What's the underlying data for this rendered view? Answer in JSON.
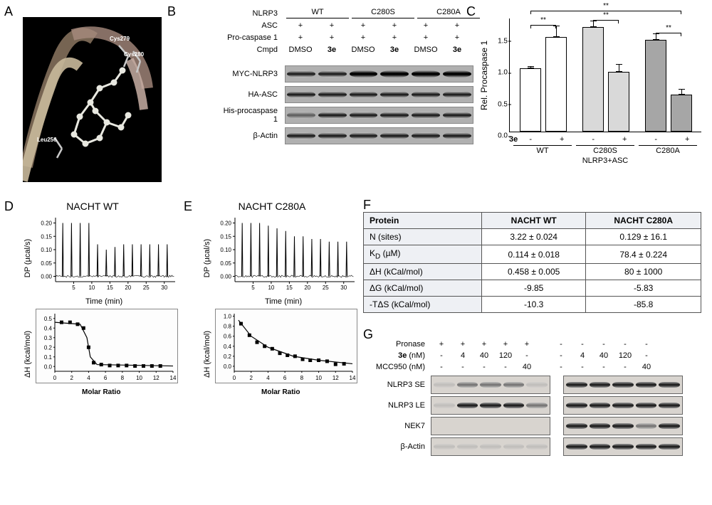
{
  "panels": {
    "A": {
      "label": "A",
      "residues": [
        "Cys279",
        "Cys280",
        "Leu256"
      ]
    },
    "B": {
      "label": "B",
      "variants": [
        "WT",
        "C280S",
        "C280A"
      ],
      "header_rows": [
        "NLRP3",
        "ASC",
        "Pro-caspase 1",
        "Cmpd"
      ],
      "treatments": [
        "DMSO",
        "3e",
        "DMSO",
        "3e",
        "DMSO",
        "3e"
      ],
      "plus": "+",
      "blots": [
        "MYC-NLRP3",
        "HA-ASC",
        "His-procaspase 1",
        "β-Actin"
      ]
    },
    "C": {
      "label": "C",
      "ylabel": "Rel. Procaspase 1",
      "ylim": [
        0,
        1.8
      ],
      "yticks": [
        0,
        0.5,
        1.0,
        1.5
      ],
      "groups": [
        "WT",
        "C280S",
        "C280A"
      ],
      "bottom_label": "NLRP3+ASC",
      "treatment_label": "3e",
      "pm": [
        "-",
        "+",
        "-",
        "+",
        "-",
        "+"
      ],
      "bars": [
        {
          "y": 1.0,
          "err": 0.03,
          "fill": "#ffffff"
        },
        {
          "y": 1.5,
          "err": 0.18,
          "fill": "#ffffff"
        },
        {
          "y": 1.65,
          "err": 0.1,
          "fill": "#d9d9d9"
        },
        {
          "y": 0.95,
          "err": 0.12,
          "fill": "#d9d9d9"
        },
        {
          "y": 1.45,
          "err": 0.1,
          "fill": "#a6a6a6"
        },
        {
          "y": 0.58,
          "err": 0.09,
          "fill": "#a6a6a6"
        }
      ],
      "sig_marker": "**",
      "sig_pairs": [
        {
          "i": 0,
          "j": 1,
          "y": 1.7
        },
        {
          "i": 2,
          "j": 3,
          "y": 1.78
        },
        {
          "i": 4,
          "j": 5,
          "y": 1.58
        },
        {
          "i": 0,
          "j": 5,
          "y": 1.92
        }
      ],
      "bar_width": 0.32,
      "group_gap": 0.25
    },
    "D": {
      "label": "D",
      "title": "NACHT WT",
      "top": {
        "ylabel": "DP (µcal/s)",
        "xlabel": "Time (min)",
        "ylim": [
          -0.02,
          0.22
        ],
        "yticks": [
          0.0,
          0.05,
          0.1,
          0.15,
          0.2
        ],
        "xlim": [
          0,
          33
        ],
        "xticks": [
          5,
          10,
          15,
          20,
          25,
          30
        ],
        "peaks_x": [
          2,
          4.4,
          6.8,
          9.2,
          11.6,
          14,
          16.4,
          18.8,
          21.2,
          23.6,
          26,
          28.4,
          30.8
        ],
        "peaks_y": [
          0.2,
          0.2,
          0.2,
          0.2,
          0.12,
          0.1,
          0.11,
          0.12,
          0.12,
          0.12,
          0.12,
          0.12,
          0.12
        ]
      },
      "bottom": {
        "ylabel": "ΔH (kcal/mol)",
        "xlabel": "Molar Ratio",
        "ylim": [
          -0.05,
          0.55
        ],
        "yticks": [
          0.0,
          0.1,
          0.2,
          0.3,
          0.4,
          0.5
        ],
        "xlim": [
          0,
          14
        ],
        "xticks": [
          0,
          2,
          4,
          6,
          8,
          10,
          12,
          14
        ],
        "points": [
          {
            "x": 0.8,
            "y": 0.46
          },
          {
            "x": 1.8,
            "y": 0.46
          },
          {
            "x": 2.7,
            "y": 0.44
          },
          {
            "x": 3.4,
            "y": 0.4
          },
          {
            "x": 4.0,
            "y": 0.2
          },
          {
            "x": 4.6,
            "y": 0.04
          },
          {
            "x": 5.5,
            "y": 0.02
          },
          {
            "x": 6.5,
            "y": 0.01
          },
          {
            "x": 7.5,
            "y": 0.01
          },
          {
            "x": 8.5,
            "y": 0.01
          },
          {
            "x": 9.5,
            "y": 0.005
          },
          {
            "x": 10.5,
            "y": 0.005
          },
          {
            "x": 11.5,
            "y": 0.005
          },
          {
            "x": 12.5,
            "y": 0.005
          }
        ],
        "curve": [
          {
            "x": 0,
            "y": 0.46
          },
          {
            "x": 3,
            "y": 0.44
          },
          {
            "x": 3.8,
            "y": 0.3
          },
          {
            "x": 4.2,
            "y": 0.1
          },
          {
            "x": 5,
            "y": 0.02
          },
          {
            "x": 14,
            "y": 0.005
          }
        ]
      }
    },
    "E": {
      "label": "E",
      "title": "NACHT C280A",
      "top": {
        "ylabel": "DP (µcal/s)",
        "xlabel": "Time (min)",
        "ylim": [
          -0.02,
          0.22
        ],
        "yticks": [
          0.0,
          0.05,
          0.1,
          0.15,
          0.2
        ],
        "xlim": [
          0,
          33
        ],
        "xticks": [
          5,
          10,
          15,
          20,
          25,
          30
        ],
        "peaks_x": [
          2,
          4.4,
          6.8,
          9.2,
          11.6,
          14,
          16.4,
          18.8,
          21.2,
          23.6,
          26,
          28.4,
          30.8
        ],
        "peaks_y": [
          0.2,
          0.2,
          0.2,
          0.19,
          0.18,
          0.17,
          0.15,
          0.15,
          0.14,
          0.14,
          0.13,
          0.13,
          0.13
        ]
      },
      "bottom": {
        "ylabel": "ΔH (kcal/mol)",
        "xlabel": "Molar Ratio",
        "ylim": [
          -0.1,
          1.05
        ],
        "yticks": [
          0.0,
          0.2,
          0.4,
          0.6,
          0.8,
          1.0
        ],
        "xlim": [
          0,
          14
        ],
        "xticks": [
          0,
          2,
          4,
          6,
          8,
          10,
          12,
          14
        ],
        "points": [
          {
            "x": 0.8,
            "y": 0.85
          },
          {
            "x": 1.8,
            "y": 0.62
          },
          {
            "x": 2.7,
            "y": 0.48
          },
          {
            "x": 3.6,
            "y": 0.4
          },
          {
            "x": 4.5,
            "y": 0.35
          },
          {
            "x": 5.4,
            "y": 0.26
          },
          {
            "x": 6.3,
            "y": 0.22
          },
          {
            "x": 7.2,
            "y": 0.2
          },
          {
            "x": 8.1,
            "y": 0.14
          },
          {
            "x": 9.0,
            "y": 0.12
          },
          {
            "x": 10.0,
            "y": 0.12
          },
          {
            "x": 11.0,
            "y": 0.1
          },
          {
            "x": 12.0,
            "y": 0.04
          },
          {
            "x": 13.0,
            "y": 0.05
          }
        ],
        "curve": [
          {
            "x": 0.5,
            "y": 0.92
          },
          {
            "x": 2,
            "y": 0.6
          },
          {
            "x": 4,
            "y": 0.38
          },
          {
            "x": 7,
            "y": 0.2
          },
          {
            "x": 10,
            "y": 0.12
          },
          {
            "x": 14,
            "y": 0.05
          }
        ]
      }
    },
    "F": {
      "label": "F",
      "headers": [
        "Protein",
        "NACHT WT",
        "NACHT C280A"
      ],
      "rows": [
        [
          "N (sites)",
          "3.22 ± 0.024",
          "0.129 ± 16.1"
        ],
        [
          "K_D (µM)",
          "0.114 ± 0.018",
          "78.4 ± 0.224"
        ],
        [
          "ΔH (kCal/mol)",
          "0.458 ± 0.005",
          "80 ± 1000"
        ],
        [
          "ΔG (kCal/mol)",
          "-9.85",
          "-5.83"
        ],
        [
          "-TΔS (kCal/mol)",
          "-10.3",
          "-85.8"
        ]
      ]
    },
    "G": {
      "label": "G",
      "header_rows": [
        "Pronase",
        "3e (nM)",
        "MCC950 (nM)"
      ],
      "left_cols": [
        [
          "+",
          "+",
          "+",
          "+",
          "+"
        ],
        [
          "-",
          "4",
          "40",
          "120",
          "-"
        ],
        [
          "-",
          "-",
          "-",
          "-",
          "40"
        ]
      ],
      "right_cols": [
        [
          "-",
          "-",
          "-",
          "-",
          "-"
        ],
        [
          "-",
          "4",
          "40",
          "120",
          "-"
        ],
        [
          "-",
          "-",
          "-",
          "-",
          "40"
        ]
      ],
      "blots": [
        "NLRP3 SE",
        "NLRP3 LE",
        "NEK7",
        "β-Actin"
      ],
      "intensity": {
        "NLRP3 SE": {
          "left": [
            "faint",
            "mid",
            "mid",
            "mid",
            "faint"
          ],
          "right": [
            "dark",
            "dark",
            "dark",
            "dark",
            "dark"
          ]
        },
        "NLRP3 LE": {
          "left": [
            "faint",
            "dark",
            "dark",
            "dark",
            "mid"
          ],
          "right": [
            "dark",
            "dark",
            "dark",
            "dark",
            "dark"
          ]
        },
        "NEK7": {
          "left": [
            "none",
            "none",
            "none",
            "none",
            "none"
          ],
          "right": [
            "dark",
            "dark",
            "dark",
            "mid",
            "dark"
          ]
        },
        "β-Actin": {
          "left": [
            "faint",
            "faint",
            "faint",
            "faint",
            "faint"
          ],
          "right": [
            "dark",
            "dark",
            "dark",
            "dark",
            "dark"
          ]
        }
      }
    }
  },
  "colors": {
    "bg": "#ffffff",
    "axis": "#000000",
    "table_header": "#eef0f4"
  }
}
